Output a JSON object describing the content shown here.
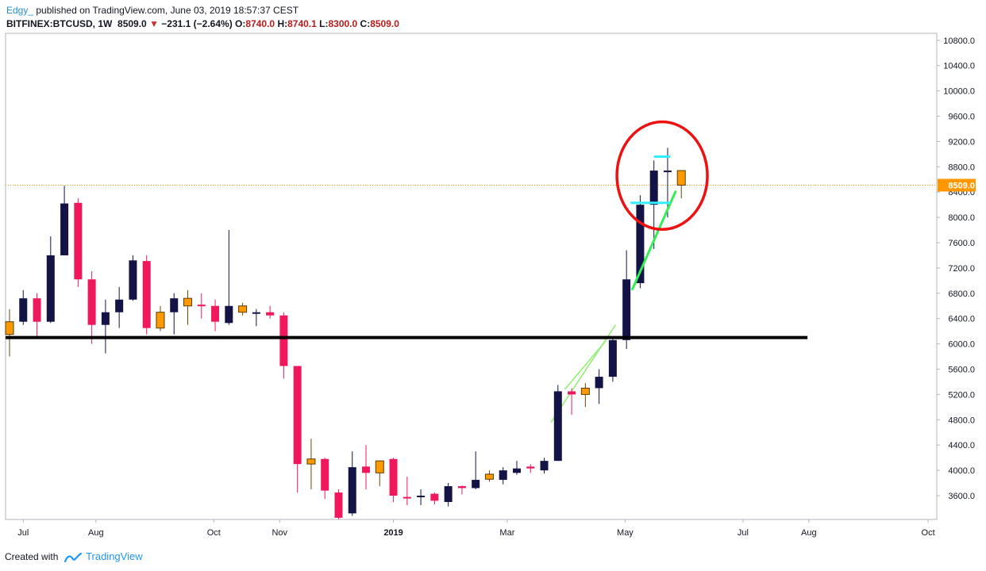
{
  "header": {
    "author": "Edgy_",
    "published_text": "published on TradingView.com, June 03, 2019 18:57:37 CEST",
    "symbol": "BITFINEX:BTCUSD, 1W",
    "last": "8509.0",
    "change_arrow": "▼",
    "change": "−231.1 (−2.64%)",
    "o_label": "O:",
    "o_value": "8740.0",
    "h_label": "H:",
    "h_value": "8740.1",
    "l_label": "L:",
    "l_value": "8300.0",
    "c_label": "C:",
    "c_value": "8509.0"
  },
  "footer": {
    "created_with": "Created with",
    "brand": "TradingView"
  },
  "colors": {
    "up": "#131345",
    "down": "#f0185c",
    "doji": "#ff9900",
    "current_price_line": "#ff9800",
    "support_line": "#000000",
    "trend_light": "#90ee70",
    "trend_bright": "#33ee55",
    "marker_cyan": "#33eeff",
    "circle": "#ee1111"
  },
  "chart_data": {
    "type": "candlestick",
    "symbol": "BITFINEX:BTCUSD",
    "interval": "1W",
    "y_range": [
      3300,
      11000
    ],
    "y_ticks": [
      3600,
      4000,
      4400,
      4800,
      5200,
      5600,
      6000,
      6400,
      6800,
      7200,
      7600,
      8000,
      8400,
      8800,
      9200,
      9600,
      10000,
      10400,
      10800
    ],
    "y_tick_labels": [
      "3600.0",
      "4000.0",
      "4400.0",
      "4800.0",
      "5200.0",
      "5600.0",
      "6000.0",
      "6400.0",
      "6800.0",
      "7200.0",
      "7600.0",
      "8000.0",
      "8400.0",
      "8800.0",
      "9200.0",
      "9600.0",
      "10000.0",
      "10400.0",
      "10800.0"
    ],
    "x_ticks": [
      {
        "label": "Jul",
        "week": 1
      },
      {
        "label": "Aug",
        "week": 6.3
      },
      {
        "label": "Oct",
        "week": 14.9
      },
      {
        "label": "Nov",
        "week": 19.7
      },
      {
        "label": "2019",
        "week": 28
      },
      {
        "label": "Mar",
        "week": 36.3
      },
      {
        "label": "May",
        "week": 44.9
      },
      {
        "label": "Jul",
        "week": 53.5
      },
      {
        "label": "Aug",
        "week": 58.3
      },
      {
        "label": "Oct",
        "week": 67
      }
    ],
    "current_price": 8509.0,
    "current_price_label": "8509.0",
    "candles": [
      {
        "o": 6150,
        "h": 6550,
        "l": 5800,
        "c": 6350,
        "kind": "doji"
      },
      {
        "o": 6350,
        "h": 6850,
        "l": 6300,
        "c": 6720,
        "kind": "up"
      },
      {
        "o": 6720,
        "h": 6800,
        "l": 6100,
        "c": 6350,
        "kind": "down"
      },
      {
        "o": 6350,
        "h": 7700,
        "l": 6330,
        "c": 7400,
        "kind": "up"
      },
      {
        "o": 7400,
        "h": 8500,
        "l": 7400,
        "c": 8220,
        "kind": "up"
      },
      {
        "o": 8230,
        "h": 8300,
        "l": 6900,
        "c": 7020,
        "kind": "down"
      },
      {
        "o": 7020,
        "h": 7150,
        "l": 6000,
        "c": 6300,
        "kind": "down"
      },
      {
        "o": 6300,
        "h": 6700,
        "l": 5850,
        "c": 6500,
        "kind": "up"
      },
      {
        "o": 6500,
        "h": 6900,
        "l": 6250,
        "c": 6700,
        "kind": "up"
      },
      {
        "o": 6700,
        "h": 7400,
        "l": 6680,
        "c": 7320,
        "kind": "up"
      },
      {
        "o": 7310,
        "h": 7400,
        "l": 6150,
        "c": 6250,
        "kind": "down"
      },
      {
        "o": 6250,
        "h": 6600,
        "l": 6200,
        "c": 6500,
        "kind": "doji"
      },
      {
        "o": 6500,
        "h": 6800,
        "l": 6150,
        "c": 6720,
        "kind": "up"
      },
      {
        "o": 6720,
        "h": 6850,
        "l": 6300,
        "c": 6600,
        "kind": "doji"
      },
      {
        "o": 6620,
        "h": 6800,
        "l": 6400,
        "c": 6600,
        "kind": "down"
      },
      {
        "o": 6600,
        "h": 6700,
        "l": 6200,
        "c": 6350,
        "kind": "down"
      },
      {
        "o": 6330,
        "h": 7800,
        "l": 6300,
        "c": 6600,
        "kind": "up"
      },
      {
        "o": 6600,
        "h": 6650,
        "l": 6450,
        "c": 6500,
        "kind": "doji"
      },
      {
        "o": 6500,
        "h": 6550,
        "l": 6280,
        "c": 6490,
        "kind": "up"
      },
      {
        "o": 6500,
        "h": 6600,
        "l": 6400,
        "c": 6450,
        "kind": "down"
      },
      {
        "o": 6450,
        "h": 6500,
        "l": 5450,
        "c": 5650,
        "kind": "down"
      },
      {
        "o": 5650,
        "h": 5650,
        "l": 3650,
        "c": 4100,
        "kind": "down"
      },
      {
        "o": 4100,
        "h": 4500,
        "l": 3700,
        "c": 4180,
        "kind": "doji"
      },
      {
        "o": 4180,
        "h": 4200,
        "l": 3550,
        "c": 3680,
        "kind": "down"
      },
      {
        "o": 3650,
        "h": 3700,
        "l": 3230,
        "c": 3250,
        "kind": "down"
      },
      {
        "o": 3320,
        "h": 4300,
        "l": 3280,
        "c": 4050,
        "kind": "up"
      },
      {
        "o": 4060,
        "h": 4400,
        "l": 3700,
        "c": 3960,
        "kind": "down"
      },
      {
        "o": 3960,
        "h": 4150,
        "l": 3750,
        "c": 4150,
        "kind": "doji"
      },
      {
        "o": 4180,
        "h": 4200,
        "l": 3500,
        "c": 3600,
        "kind": "down"
      },
      {
        "o": 3580,
        "h": 3900,
        "l": 3450,
        "c": 3570,
        "kind": "down"
      },
      {
        "o": 3600,
        "h": 3700,
        "l": 3450,
        "c": 3580,
        "kind": "up"
      },
      {
        "o": 3630,
        "h": 3650,
        "l": 3460,
        "c": 3520,
        "kind": "down"
      },
      {
        "o": 3500,
        "h": 3800,
        "l": 3430,
        "c": 3750,
        "kind": "up"
      },
      {
        "o": 3750,
        "h": 3760,
        "l": 3620,
        "c": 3720,
        "kind": "down"
      },
      {
        "o": 3720,
        "h": 4300,
        "l": 3700,
        "c": 3850,
        "kind": "up"
      },
      {
        "o": 3860,
        "h": 4000,
        "l": 3820,
        "c": 3940,
        "kind": "doji"
      },
      {
        "o": 3850,
        "h": 4050,
        "l": 3780,
        "c": 4000,
        "kind": "up"
      },
      {
        "o": 3960,
        "h": 4150,
        "l": 3930,
        "c": 4030,
        "kind": "up"
      },
      {
        "o": 4030,
        "h": 4100,
        "l": 3960,
        "c": 4060,
        "kind": "down"
      },
      {
        "o": 4000,
        "h": 4200,
        "l": 3950,
        "c": 4150,
        "kind": "up"
      },
      {
        "o": 4150,
        "h": 5350,
        "l": 4150,
        "c": 5250,
        "kind": "up"
      },
      {
        "o": 5250,
        "h": 5300,
        "l": 4880,
        "c": 5200,
        "kind": "down"
      },
      {
        "o": 5200,
        "h": 5380,
        "l": 5000,
        "c": 5300,
        "kind": "doji"
      },
      {
        "o": 5300,
        "h": 5600,
        "l": 5050,
        "c": 5480,
        "kind": "up"
      },
      {
        "o": 5480,
        "h": 6100,
        "l": 5400,
        "c": 6060,
        "kind": "up"
      },
      {
        "o": 6060,
        "h": 7480,
        "l": 5920,
        "c": 7020,
        "kind": "up"
      },
      {
        "o": 6960,
        "h": 8350,
        "l": 6880,
        "c": 8200,
        "kind": "up"
      },
      {
        "o": 8200,
        "h": 8900,
        "l": 7500,
        "c": 8740,
        "kind": "up"
      },
      {
        "o": 8740,
        "h": 9100,
        "l": 8000,
        "c": 8740,
        "kind": "up"
      },
      {
        "o": 8740,
        "h": 8740,
        "l": 8300,
        "c": 8509,
        "kind": "doji"
      }
    ],
    "drawings": {
      "support_line": {
        "price": 6100,
        "from_week": 0,
        "to_week": 58.2
      },
      "trend_light": [
        {
          "week": 39.5,
          "price": 4760
        },
        {
          "week": 44.2,
          "price": 6300
        }
      ],
      "trend_light_upper": [
        {
          "week": 40.5,
          "price": 5280
        },
        {
          "week": 43.5,
          "price": 6050
        }
      ],
      "trend_bright": [
        {
          "week": 45.4,
          "price": 6850
        },
        {
          "week": 48.6,
          "price": 8420
        }
      ],
      "cyan_top": {
        "price": 8960,
        "from_week": 47.0,
        "to_week": 48.2
      },
      "cyan_bottom": {
        "price": 8230,
        "from_week": 45.3,
        "to_week": 48.2
      },
      "circle": {
        "center_week": 47.6,
        "center_price": 8660,
        "r_weeks": 3.3,
        "r_price": 850
      }
    }
  }
}
